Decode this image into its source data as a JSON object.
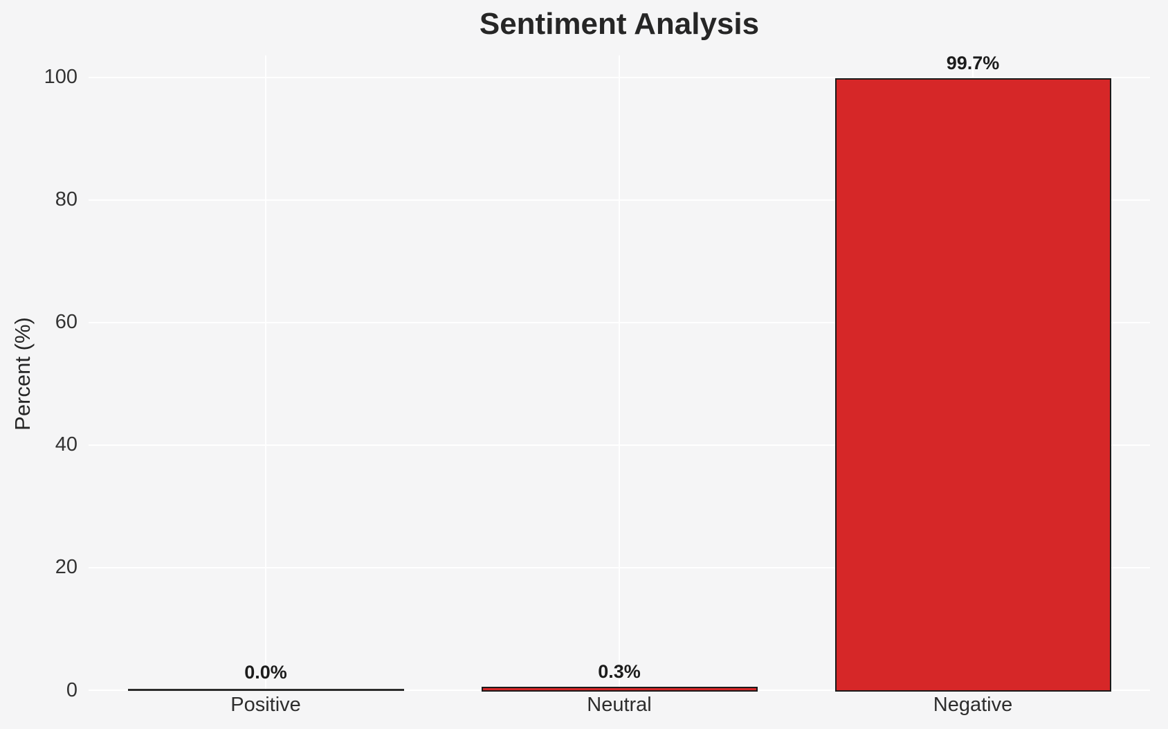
{
  "chart_data": {
    "type": "bar",
    "title": "Sentiment Analysis",
    "xlabel": "",
    "ylabel": "Percent (%)",
    "categories": [
      "Positive",
      "Neutral",
      "Negative"
    ],
    "values": [
      0.0,
      0.3,
      99.7
    ],
    "value_labels": [
      "0.0%",
      "0.3%",
      "99.7%"
    ],
    "yticks": [
      0,
      20,
      40,
      60,
      80,
      100
    ],
    "ytick_labels": [
      "0",
      "20",
      "40",
      "60",
      "80",
      "100"
    ],
    "ylim": [
      0,
      103.6
    ],
    "grid": true,
    "legend": "none",
    "styles": {
      "figure_background": "#f5f5f6",
      "grid_color": "#ffffff",
      "bar_fill": "#d62728",
      "bar_edge": "#1a1a1a",
      "title_color": "#262626",
      "tick_color": "#333333"
    }
  }
}
